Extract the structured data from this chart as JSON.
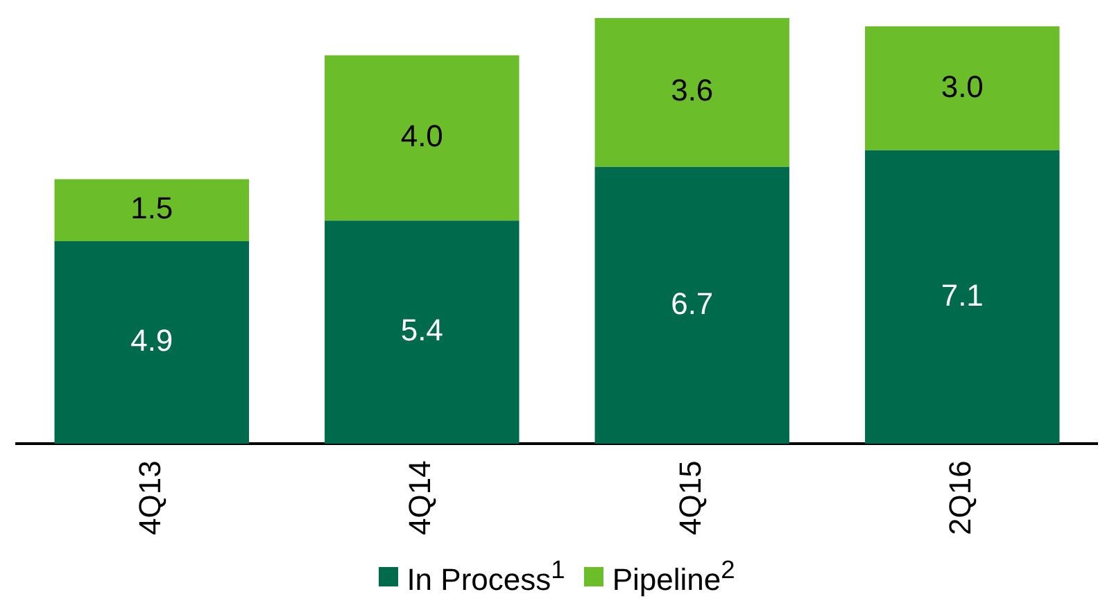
{
  "chart_data": {
    "type": "bar",
    "stacked": true,
    "categories": [
      "4Q13",
      "4Q14",
      "4Q15",
      "2Q16"
    ],
    "series": [
      {
        "name": "In Process$^{1}$",
        "color": "#006a4d",
        "values": [
          4.9,
          5.4,
          6.7,
          7.1
        ],
        "value_labels": [
          "4.9",
          "5.4",
          "6.7",
          "7.1"
        ]
      },
      {
        "name": "Pipeline$^{2}$",
        "color": "#6cbd2a",
        "values": [
          1.5,
          4.0,
          3.6,
          3.0
        ],
        "value_labels": [
          "1.5",
          "4.0",
          "3.6",
          "3.0"
        ]
      }
    ],
    "legend": "bottom",
    "grid": false
  }
}
